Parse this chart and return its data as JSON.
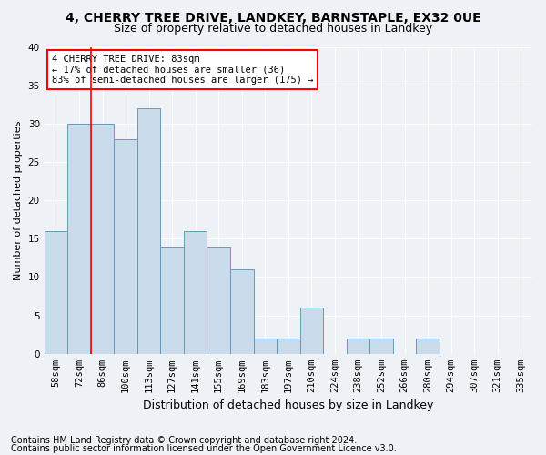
{
  "title1": "4, CHERRY TREE DRIVE, LANDKEY, BARNSTAPLE, EX32 0UE",
  "title2": "Size of property relative to detached houses in Landkey",
  "xlabel": "Distribution of detached houses by size in Landkey",
  "ylabel": "Number of detached properties",
  "categories": [
    "58sqm",
    "72sqm",
    "86sqm",
    "100sqm",
    "113sqm",
    "127sqm",
    "141sqm",
    "155sqm",
    "169sqm",
    "183sqm",
    "197sqm",
    "210sqm",
    "224sqm",
    "238sqm",
    "252sqm",
    "266sqm",
    "280sqm",
    "294sqm",
    "307sqm",
    "321sqm",
    "335sqm"
  ],
  "values": [
    16,
    30,
    30,
    28,
    32,
    14,
    16,
    14,
    11,
    2,
    2,
    6,
    0,
    2,
    2,
    0,
    2,
    0,
    0,
    0,
    0
  ],
  "bar_color": "#c9daea",
  "bar_edge_color": "#6699bb",
  "red_line_index": 2,
  "annotation_title": "4 CHERRY TREE DRIVE: 83sqm",
  "annotation_line1": "← 17% of detached houses are smaller (36)",
  "annotation_line2": "83% of semi-detached houses are larger (175) →",
  "footnote1": "Contains HM Land Registry data © Crown copyright and database right 2024.",
  "footnote2": "Contains public sector information licensed under the Open Government Licence v3.0.",
  "ylim": [
    0,
    40
  ],
  "yticks": [
    0,
    5,
    10,
    15,
    20,
    25,
    30,
    35,
    40
  ],
  "background_color": "#eef2f7",
  "plot_bg_color": "#eef2f7",
  "grid_color": "#ffffff",
  "title1_fontsize": 10,
  "title2_fontsize": 9,
  "xlabel_fontsize": 9,
  "ylabel_fontsize": 8,
  "tick_fontsize": 7.5,
  "footnote_fontsize": 7
}
